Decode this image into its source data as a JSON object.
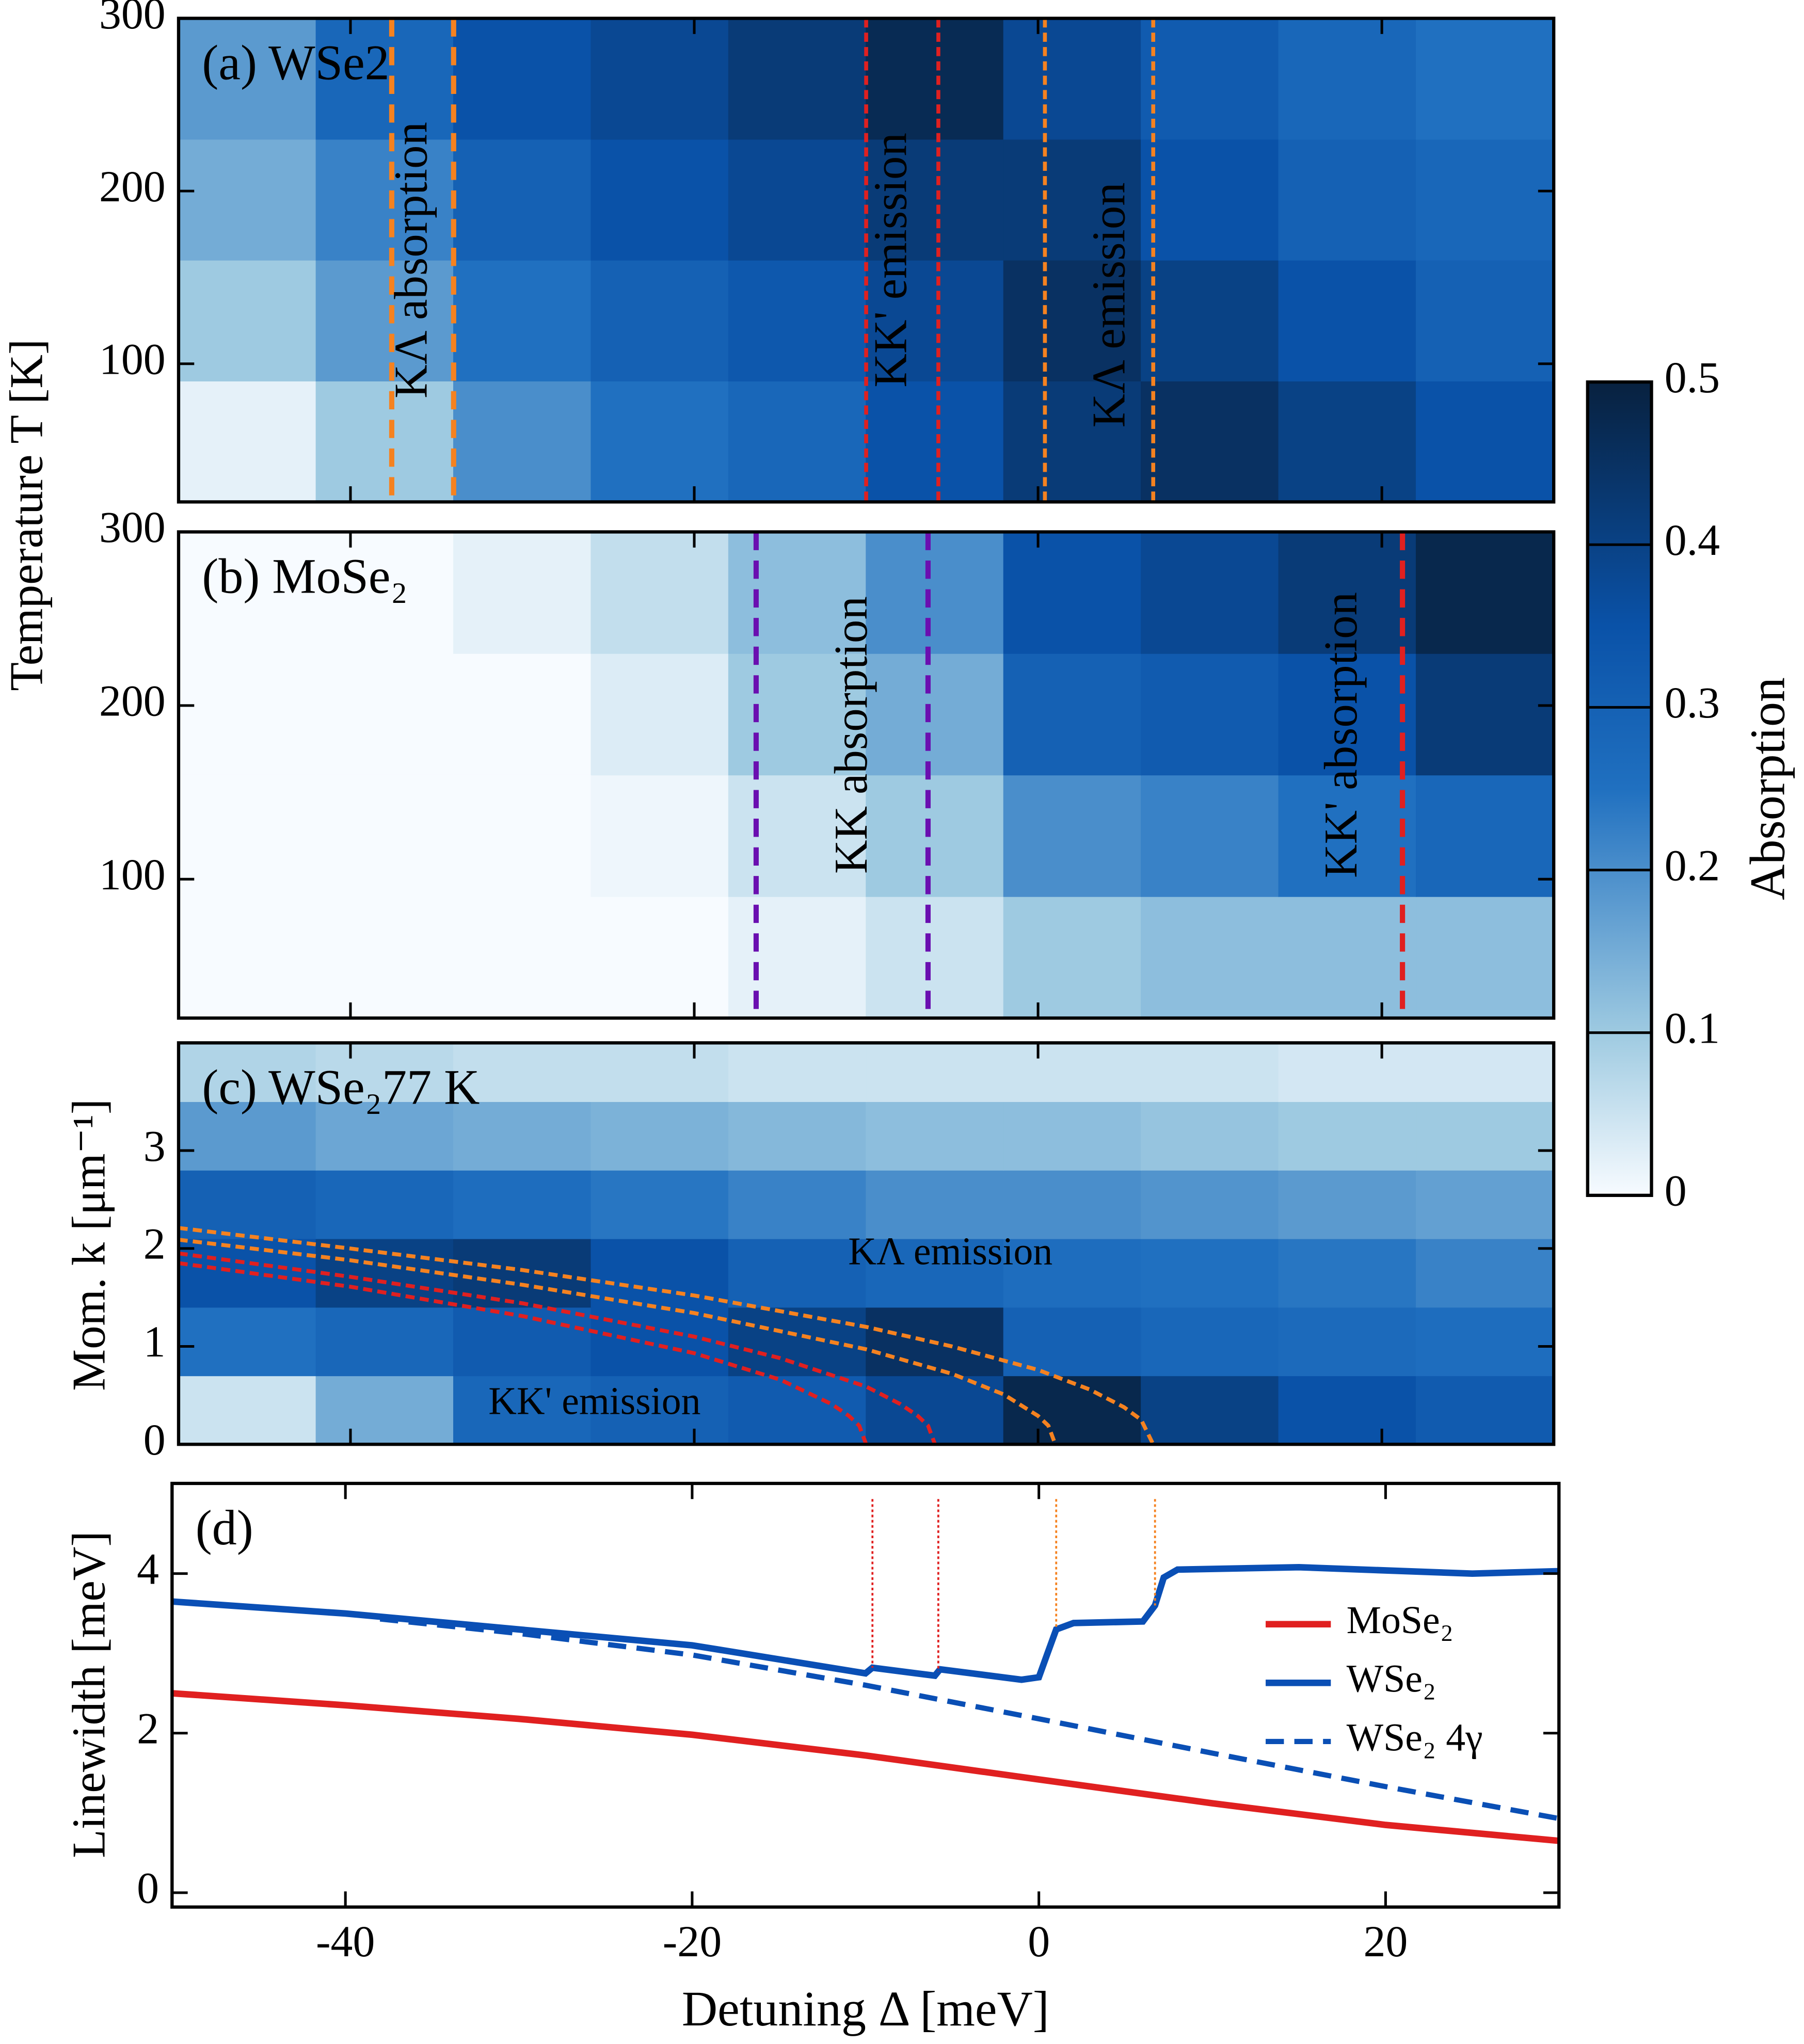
{
  "chart_data": [
    {
      "type": "heatmap",
      "title": "(a) WSe2",
      "title_color": "#000000",
      "ylabel": "Temperature T [K]",
      "xlim": [
        -50,
        30
      ],
      "xticks": [
        -40,
        -20,
        0,
        20
      ],
      "ylim": [
        20,
        300
      ],
      "yticks": [
        100,
        200,
        300
      ],
      "xbins": [
        -50,
        -42,
        -34,
        -26,
        -18,
        -10,
        -2,
        6,
        14,
        22,
        30
      ],
      "ybins": [
        20,
        90,
        160,
        230,
        300
      ],
      "z": [
        [
          0.02,
          0.1,
          0.2,
          0.25,
          0.28,
          0.35,
          0.42,
          0.45,
          0.4,
          0.35
        ],
        [
          0.1,
          0.18,
          0.25,
          0.3,
          0.33,
          0.38,
          0.45,
          0.4,
          0.35,
          0.3
        ],
        [
          0.15,
          0.22,
          0.3,
          0.35,
          0.38,
          0.42,
          0.42,
          0.35,
          0.3,
          0.28
        ],
        [
          0.18,
          0.28,
          0.35,
          0.38,
          0.42,
          0.47,
          0.38,
          0.32,
          0.28,
          0.25
        ]
      ],
      "vlines": [
        {
          "x": -37.6,
          "color": "#f58220",
          "style": "dash"
        },
        {
          "x": -34.0,
          "color": "#f58220",
          "style": "dash"
        },
        {
          "x": -10.0,
          "color": "#e02020",
          "style": "dot"
        },
        {
          "x": -5.8,
          "color": "#e02020",
          "style": "dot"
        },
        {
          "x": 0.4,
          "color": "#f58220",
          "style": "dot"
        },
        {
          "x": 6.7,
          "color": "#f58220",
          "style": "dot"
        }
      ],
      "annotations": [
        {
          "text": "KΛ absorption",
          "x": -36.2,
          "y": 160,
          "color": "#f58220"
        },
        {
          "text": "KK' emission",
          "x": -8.3,
          "y": 160,
          "color": "#e02020"
        },
        {
          "text": "KΛ emission",
          "x": 4.4,
          "y": 134,
          "color": "#f58220"
        }
      ],
      "colorbar": {
        "label": "Absorption",
        "lim": [
          0,
          0.5
        ],
        "ticks": [
          0,
          0.1,
          0.2,
          0.3,
          0.4,
          0.5
        ]
      }
    },
    {
      "type": "heatmap",
      "title": "(b) MoSe₂",
      "title_color": "#000000",
      "xlim": [
        -50,
        30
      ],
      "xticks": [
        -40,
        -20,
        0,
        20
      ],
      "ylim": [
        20,
        300
      ],
      "yticks": [
        100,
        200,
        300
      ],
      "xbins": [
        -50,
        -42,
        -34,
        -26,
        -18,
        -10,
        -2,
        6,
        14,
        22,
        30
      ],
      "ybins": [
        20,
        90,
        160,
        230,
        300
      ],
      "z": [
        [
          0,
          0,
          0,
          0,
          0.02,
          0.05,
          0.1,
          0.12,
          0.12,
          0.12
        ],
        [
          0,
          0,
          0,
          0.01,
          0.05,
          0.1,
          0.2,
          0.22,
          0.25,
          0.28
        ],
        [
          0,
          0,
          0,
          0.03,
          0.1,
          0.15,
          0.3,
          0.32,
          0.35,
          0.42
        ],
        [
          0,
          0,
          0.02,
          0.06,
          0.12,
          0.2,
          0.35,
          0.38,
          0.42,
          0.48
        ]
      ],
      "vlines": [
        {
          "x": -16.4,
          "color": "#6a0fb0",
          "style": "dash"
        },
        {
          "x": -6.4,
          "color": "#6a0fb0",
          "style": "dash"
        },
        {
          "x": 21.2,
          "color": "#e02020",
          "style": "dash"
        }
      ],
      "annotations": [
        {
          "text": "KK absorption",
          "x": -10.6,
          "y": 183,
          "color": "#6a0fb0"
        },
        {
          "text": "KK' absorption",
          "x": 17.9,
          "y": 183,
          "color": "#e02020"
        }
      ]
    },
    {
      "type": "heatmap",
      "title": "(c) WSe₂77 K",
      "title_color": "#ffffff",
      "ylabel": "Mom. k [μm⁻¹]",
      "xlim": [
        -50,
        30
      ],
      "xticks": [
        -40,
        -20,
        0,
        20
      ],
      "ylim": [
        0,
        4.1
      ],
      "yticks": [
        0,
        1,
        2,
        3
      ],
      "xbins": [
        -50,
        -42,
        -34,
        -26,
        -18,
        -10,
        -2,
        6,
        14,
        22,
        30
      ],
      "ybins": [
        0,
        0.7,
        1.4,
        2.1,
        2.8,
        3.5,
        4.1
      ],
      "z": [
        [
          0.05,
          0.15,
          0.28,
          0.3,
          0.32,
          0.38,
          0.48,
          0.4,
          0.35,
          0.32
        ],
        [
          0.25,
          0.28,
          0.32,
          0.35,
          0.4,
          0.45,
          0.3,
          0.28,
          0.27,
          0.26
        ],
        [
          0.35,
          0.4,
          0.42,
          0.35,
          0.3,
          0.28,
          0.26,
          0.25,
          0.24,
          0.22
        ],
        [
          0.3,
          0.28,
          0.26,
          0.24,
          0.22,
          0.2,
          0.2,
          0.19,
          0.18,
          0.17
        ],
        [
          0.18,
          0.16,
          0.15,
          0.14,
          0.13,
          0.12,
          0.12,
          0.11,
          0.1,
          0.1
        ],
        [
          0.08,
          0.07,
          0.06,
          0.06,
          0.05,
          0.05,
          0.05,
          0.05,
          0.04,
          0.04
        ]
      ],
      "series": [
        {
          "color": "#f58220",
          "style": "dot",
          "x": [
            -50,
            -40,
            -30,
            -20,
            -10,
            -5,
            0,
            3,
            5,
            6,
            6.7
          ],
          "values": [
            2.21,
            2.0,
            1.78,
            1.52,
            1.2,
            1.0,
            0.76,
            0.56,
            0.38,
            0.25,
            0
          ]
        },
        {
          "color": "#f58220",
          "style": "dot",
          "x": [
            -50,
            -40,
            -30,
            -20,
            -10,
            -5,
            -2,
            0,
            0.6,
            1
          ],
          "values": [
            2.09,
            1.88,
            1.63,
            1.34,
            0.97,
            0.72,
            0.51,
            0.29,
            0.19,
            0
          ]
        },
        {
          "color": "#e02020",
          "style": "dot",
          "x": [
            -50,
            -40,
            -30,
            -20,
            -15,
            -10,
            -8,
            -7,
            -6.4,
            -6
          ],
          "values": [
            1.95,
            1.71,
            1.44,
            1.1,
            0.88,
            0.59,
            0.41,
            0.29,
            0.19,
            0
          ]
        },
        {
          "color": "#e02020",
          "style": "dot",
          "x": [
            -50,
            -40,
            -30,
            -20,
            -15,
            -12,
            -11,
            -10.4,
            -10
          ],
          "values": [
            1.85,
            1.61,
            1.31,
            0.93,
            0.66,
            0.41,
            0.29,
            0.19,
            0
          ]
        }
      ],
      "annotations": [
        {
          "text": "KΛ emission",
          "x": -5.1,
          "y": 1.93,
          "color": "#f58220",
          "horizontal": true
        },
        {
          "text": "KK' emission",
          "x": -25.8,
          "y": 0.4,
          "color": "#e02020",
          "horizontal": true
        }
      ]
    },
    {
      "type": "line",
      "title": "(d)",
      "title_color": "#000000",
      "ylabel": "Linewidth [meV]",
      "xlabel": "Detuning Δ [meV]",
      "xlim": [
        -50,
        30
      ],
      "xticks": [
        -40,
        -20,
        0,
        20
      ],
      "ylim": [
        -0.18,
        5.13
      ],
      "yticks": [
        0,
        2,
        4
      ],
      "legend": "right",
      "series": [
        {
          "name": "MoSe₂",
          "color": "#e02020",
          "style": "solid",
          "x": [
            -50,
            -40,
            -30,
            -20,
            -10,
            0,
            10,
            20,
            30
          ],
          "values": [
            2.5,
            2.35,
            2.18,
            1.98,
            1.72,
            1.42,
            1.12,
            0.85,
            0.65
          ]
        },
        {
          "name": "WSe₂",
          "color": "#0a4fb5",
          "style": "solid",
          "x": [
            -50,
            -40,
            -30,
            -20,
            -10,
            -9.6,
            -6,
            -5.7,
            -1,
            0,
            0.5,
            1,
            2,
            6,
            6.7,
            7.2,
            8,
            15,
            25,
            30
          ],
          "values": [
            3.65,
            3.5,
            3.3,
            3.1,
            2.75,
            2.82,
            2.72,
            2.8,
            2.67,
            2.7,
            3.0,
            3.3,
            3.38,
            3.4,
            3.6,
            3.95,
            4.05,
            4.08,
            4.0,
            4.03
          ]
        },
        {
          "name": "WSe₂ 4γ",
          "color": "#0a4fb5",
          "style": "dash",
          "x": [
            -38,
            -30,
            -20,
            -10,
            0,
            10,
            20,
            30
          ],
          "values": [
            3.43,
            3.25,
            2.98,
            2.6,
            2.18,
            1.75,
            1.33,
            0.93
          ]
        }
      ],
      "vlines": [
        {
          "x": -9.6,
          "color": "#e02020",
          "style": "fine"
        },
        {
          "x": -5.8,
          "color": "#e02020",
          "style": "fine"
        },
        {
          "x": 1.0,
          "color": "#f58220",
          "style": "fine"
        },
        {
          "x": 6.7,
          "color": "#f58220",
          "style": "fine"
        }
      ]
    }
  ]
}
